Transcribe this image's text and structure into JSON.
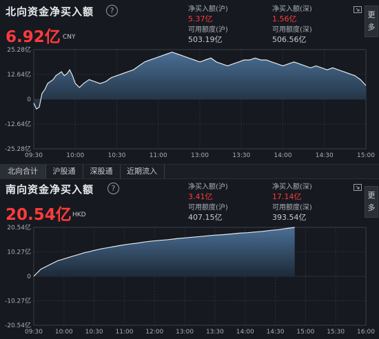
{
  "north": {
    "title": "北向资金净买入额",
    "help_glyph": "?",
    "total": "6.92亿",
    "currency": "CNY",
    "stats": [
      {
        "label": "净买入额(沪)",
        "value": "5.37亿",
        "color": "red"
      },
      {
        "label": "净买入额(深)",
        "value": "1.56亿",
        "color": "red"
      },
      {
        "label": "可用额度(沪)",
        "value": "503.19亿",
        "color": "white"
      },
      {
        "label": "可用额度(深)",
        "value": "506.56亿",
        "color": "white"
      }
    ],
    "more_label": "更\n多"
  },
  "tabs": [
    {
      "label": "北向合计",
      "active": true
    },
    {
      "label": "沪股通",
      "active": false
    },
    {
      "label": "深股通",
      "active": false
    },
    {
      "label": "近期流入",
      "active": false
    }
  ],
  "south": {
    "title": "南向资金净买入额",
    "help_glyph": "?",
    "total": "20.54亿",
    "currency": "HKD",
    "stats": [
      {
        "label": "净买入额(沪)",
        "value": "3.41亿",
        "color": "red"
      },
      {
        "label": "净买入额(深)",
        "value": "17.14亿",
        "color": "red"
      },
      {
        "label": "可用额度(沪)",
        "value": "407.15亿",
        "color": "white"
      },
      {
        "label": "可用额度(深)",
        "value": "393.54亿",
        "color": "white"
      }
    ],
    "more_label": "更\n多"
  },
  "colors": {
    "accent_red": "#ff3b3b",
    "line": "#e6e9ee",
    "area_top": "#4a6f95",
    "area_bottom": "#233447",
    "grid": "#2c3139"
  },
  "chart_data": [
    {
      "type": "area",
      "name": "north",
      "x_ticks": [
        "09:30",
        "10:00",
        "10:30",
        "11:00",
        "13:00",
        "13:30",
        "14:00",
        "14:30",
        "15:00"
      ],
      "y_ticks": [
        "25.28亿",
        "12.64亿",
        "0",
        "-12.64亿",
        "-25.28亿"
      ],
      "ylim": [
        -25.28,
        25.28
      ],
      "x": [
        0,
        2,
        4,
        6,
        8,
        10,
        12,
        14,
        16,
        18,
        20,
        22,
        24,
        26,
        28,
        30,
        33,
        36,
        40,
        44,
        48,
        52,
        56,
        60,
        64,
        68,
        72,
        76,
        80,
        84,
        88,
        92,
        96,
        100,
        104,
        108,
        112,
        116,
        120,
        124,
        128,
        132,
        136,
        140,
        144,
        148,
        152,
        156,
        160,
        164,
        168,
        172,
        176,
        180,
        184,
        188,
        192,
        196,
        200,
        204,
        208,
        212,
        216,
        220,
        224,
        228,
        232,
        236,
        240
      ],
      "values": [
        -2,
        -5,
        -4,
        3,
        5,
        8,
        9,
        10,
        12,
        13,
        14,
        12,
        13,
        15,
        12,
        8,
        6,
        8,
        10,
        9,
        8,
        9,
        11,
        12,
        13,
        14,
        15,
        17,
        19,
        20,
        21,
        22,
        23,
        24,
        23,
        22,
        21,
        20,
        19,
        20,
        21,
        19,
        18,
        17,
        18,
        19,
        20,
        20,
        21,
        20,
        20,
        19,
        18,
        17,
        18,
        19,
        18,
        17,
        16,
        17,
        16,
        15,
        16,
        15,
        14,
        13,
        12,
        10,
        7
      ]
    },
    {
      "type": "area",
      "name": "south",
      "x_ticks": [
        "09:30",
        "10:00",
        "10:30",
        "11:00",
        "12:00",
        "13:00",
        "13:30",
        "14:00",
        "14:30",
        "15:00",
        "15:30",
        "16:00"
      ],
      "y_ticks": [
        "20.54亿",
        "10.27亿",
        "0",
        "-10.27亿",
        "-20.54亿"
      ],
      "ylim": [
        -20.54,
        20.54
      ],
      "x": [
        0,
        3,
        6,
        9,
        12,
        15,
        18,
        21,
        24,
        27,
        30,
        35,
        40,
        45,
        50,
        55,
        60,
        65,
        70,
        75,
        80,
        85,
        90,
        95,
        100,
        105,
        110,
        120,
        130,
        140,
        150,
        160,
        170,
        180,
        190,
        200,
        210,
        220,
        230,
        240,
        250,
        260,
        270,
        280,
        290,
        300,
        310,
        320,
        330
      ],
      "values": [
        0,
        1,
        2,
        3,
        3.5,
        4,
        4.5,
        5,
        5.5,
        6,
        6.5,
        7,
        7.5,
        8,
        8.5,
        9,
        9.5,
        10,
        10.3,
        10.8,
        11.1,
        11.5,
        11.8,
        12.1,
        12.4,
        12.7,
        13,
        13.5,
        13.9,
        14.4,
        14.8,
        15.1,
        15.4,
        15.8,
        16.1,
        16.4,
        16.7,
        17,
        17.3,
        17.5,
        17.8,
        18.1,
        18.3,
        18.6,
        18.9,
        19.3,
        19.6,
        20.1,
        20.54
      ]
    }
  ]
}
